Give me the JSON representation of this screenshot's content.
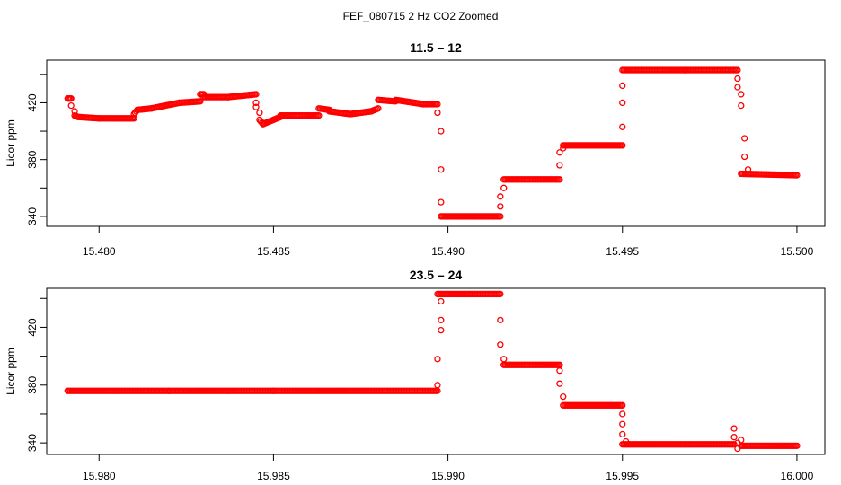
{
  "figure": {
    "main_title": "FEF_080715  2 Hz CO2 Zoomed"
  },
  "colors": {
    "points": "#ff0000",
    "axes": "#000000",
    "background": "#ffffff"
  },
  "chart_data": [
    {
      "type": "scatter",
      "title": "11.5 – 12",
      "xlabel": "",
      "ylabel": "Licor ppm",
      "xlim": [
        15.4785,
        15.5008
      ],
      "ylim": [
        333,
        450
      ],
      "xticks": [
        15.48,
        15.485,
        15.49,
        15.495,
        15.5
      ],
      "xtick_labels": [
        "15.480",
        "15.485",
        "15.490",
        "15.495",
        "15.500"
      ],
      "yticks": [
        340,
        360,
        380,
        400,
        420,
        440
      ],
      "ytick_labels": [
        "340",
        "",
        "380",
        "",
        "420",
        ""
      ],
      "grid": false,
      "series": [
        {
          "color": "#ff0000",
          "segments": [
            [
              15.4791,
              15.4792,
              423,
              423
            ],
            [
              15.4793,
              15.4794,
              411,
              410
            ],
            [
              15.4794,
              15.48,
              410,
              409
            ],
            [
              15.48,
              15.481,
              409,
              409
            ],
            [
              15.481,
              15.4811,
              412,
              415
            ],
            [
              15.4811,
              15.4815,
              415,
              416
            ],
            [
              15.4815,
              15.4823,
              416,
              420
            ],
            [
              15.4823,
              15.4829,
              420,
              421
            ],
            [
              15.4829,
              15.483,
              426,
              426
            ],
            [
              15.483,
              15.4837,
              424,
              424
            ],
            [
              15.4837,
              15.4845,
              424,
              426
            ],
            [
              15.4846,
              15.4847,
              408,
              405
            ],
            [
              15.4847,
              15.4852,
              405,
              410
            ],
            [
              15.4852,
              15.4863,
              411,
              411
            ],
            [
              15.4863,
              15.4866,
              416,
              415
            ],
            [
              15.4866,
              15.4872,
              414,
              412
            ],
            [
              15.4872,
              15.4878,
              412,
              414
            ],
            [
              15.4878,
              15.488,
              414,
              416
            ],
            [
              15.488,
              15.4885,
              422,
              421
            ],
            [
              15.4885,
              15.4893,
              422,
              419
            ],
            [
              15.4893,
              15.4897,
              419,
              419
            ],
            [
              15.4898,
              15.4915,
              340,
              340
            ],
            [
              15.4916,
              15.4932,
              366,
              366
            ],
            [
              15.4933,
              15.495,
              390,
              390
            ],
            [
              15.495,
              15.4968,
              443,
              443
            ],
            [
              15.4968,
              15.4983,
              443,
              443
            ],
            [
              15.4984,
              15.5,
              370,
              369
            ]
          ],
          "points": [
            [
              15.4792,
              418
            ],
            [
              15.4793,
              414
            ],
            [
              15.4845,
              420
            ],
            [
              15.4845,
              417
            ],
            [
              15.4846,
              413
            ],
            [
              15.4897,
              413
            ],
            [
              15.4898,
              400
            ],
            [
              15.4898,
              373
            ],
            [
              15.4898,
              350
            ],
            [
              15.4915,
              347
            ],
            [
              15.4915,
              354
            ],
            [
              15.4916,
              360
            ],
            [
              15.4932,
              376
            ],
            [
              15.4932,
              385
            ],
            [
              15.4933,
              388
            ],
            [
              15.495,
              403
            ],
            [
              15.495,
              420
            ],
            [
              15.495,
              432
            ],
            [
              15.4983,
              437
            ],
            [
              15.4983,
              431
            ],
            [
              15.4984,
              426
            ],
            [
              15.4984,
              418
            ],
            [
              15.4985,
              395
            ],
            [
              15.4985,
              382
            ],
            [
              15.4986,
              373
            ]
          ]
        }
      ]
    },
    {
      "type": "scatter",
      "title": "23.5 – 24",
      "xlabel": "",
      "ylabel": "Licor ppm",
      "xlim": [
        15.9785,
        16.0008
      ],
      "ylim": [
        332,
        447
      ],
      "xticks": [
        15.98,
        15.985,
        15.99,
        15.995,
        16.0
      ],
      "xtick_labels": [
        "15.980",
        "15.985",
        "15.990",
        "15.995",
        "16.000"
      ],
      "yticks": [
        340,
        360,
        380,
        400,
        420,
        440
      ],
      "ytick_labels": [
        "340",
        "",
        "380",
        "",
        "420",
        ""
      ],
      "grid": false,
      "series": [
        {
          "color": "#ff0000",
          "segments": [
            [
              15.9791,
              15.982,
              376,
              376
            ],
            [
              15.982,
              15.985,
              376,
              376
            ],
            [
              15.985,
              15.9897,
              376,
              376
            ],
            [
              15.9897,
              15.9915,
              443,
              443
            ],
            [
              15.9916,
              15.9932,
              394,
              394
            ],
            [
              15.9933,
              15.995,
              366,
              366
            ],
            [
              15.995,
              15.9982,
              339,
              339
            ],
            [
              15.9984,
              16.0,
              338,
              338
            ]
          ],
          "points": [
            [
              15.9897,
              380
            ],
            [
              15.9897,
              398
            ],
            [
              15.9898,
              418
            ],
            [
              15.9898,
              425
            ],
            [
              15.9898,
              438
            ],
            [
              15.9915,
              425
            ],
            [
              15.9915,
              408
            ],
            [
              15.9916,
              398
            ],
            [
              15.9932,
              390
            ],
            [
              15.9932,
              381
            ],
            [
              15.9933,
              372
            ],
            [
              15.995,
              360
            ],
            [
              15.995,
              353
            ],
            [
              15.995,
              346
            ],
            [
              15.9951,
              341
            ],
            [
              15.9982,
              350
            ],
            [
              15.9982,
              344
            ],
            [
              15.9983,
              340
            ],
            [
              15.9983,
              336
            ],
            [
              15.9984,
              342
            ]
          ]
        }
      ]
    }
  ]
}
